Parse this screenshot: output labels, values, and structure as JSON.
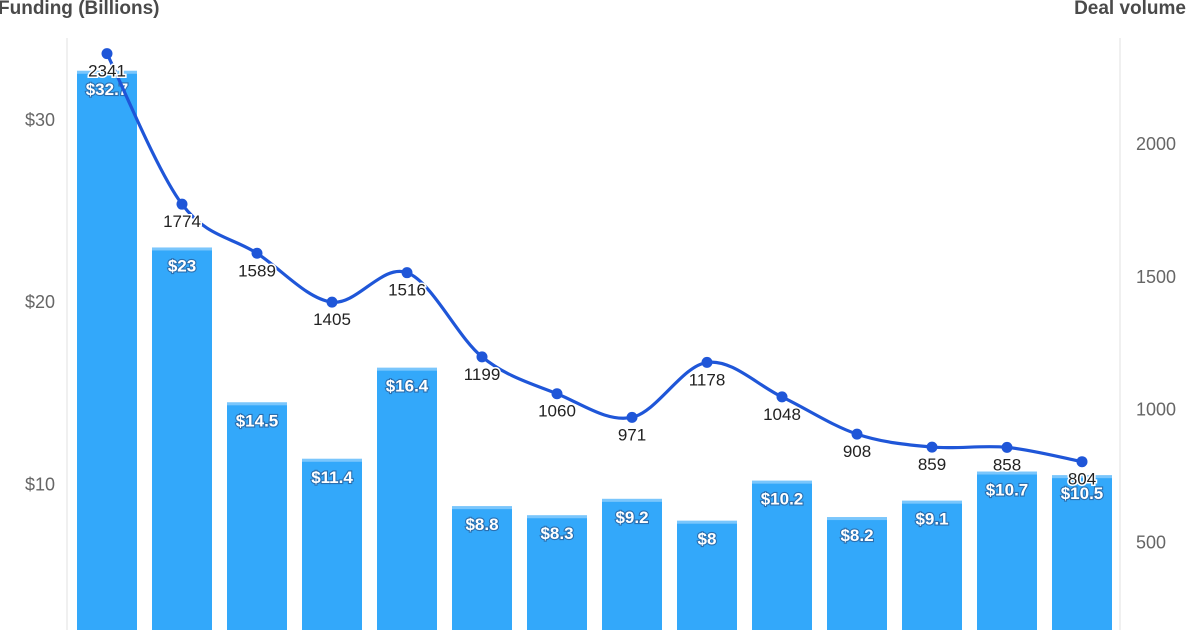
{
  "chart_data": {
    "type": "bar",
    "left_axis_title": "Funding (Billions)",
    "right_axis_title": "Deal volume",
    "left_ticks": [
      "$10",
      "$20",
      "$30"
    ],
    "right_ticks": [
      "500",
      "1000",
      "1500",
      "2000"
    ],
    "ylim_left": [
      2,
      34.5
    ],
    "ylim_right": [
      170,
      2400
    ],
    "colors": {
      "bars": "#33a8fa",
      "line": "#1f56d8",
      "bar_label_outline": "#2a6fb0"
    },
    "series": [
      {
        "kind": "bar",
        "axis": "left",
        "values": [
          32.7,
          23,
          14.5,
          11.4,
          16.4,
          8.8,
          8.3,
          9.2,
          8,
          10.2,
          8.2,
          9.1,
          10.7,
          10.5
        ],
        "labels": [
          "$32.7",
          "$23",
          "$14.5",
          "$11.4",
          "$16.4",
          "$8.8",
          "$8.3",
          "$9.2",
          "$8",
          "$10.2",
          "$8.2",
          "$9.1",
          "$10.7",
          "$10.5"
        ]
      },
      {
        "kind": "line",
        "axis": "right",
        "values": [
          2341,
          1774,
          1589,
          1405,
          1516,
          1199,
          1060,
          971,
          1178,
          1048,
          908,
          859,
          858,
          804
        ],
        "labels": [
          "2341",
          "1774",
          "1589",
          "1405",
          "1516",
          "1199",
          "1060",
          "971",
          "1178",
          "1048",
          "908",
          "859",
          "858",
          "804"
        ]
      }
    ]
  }
}
